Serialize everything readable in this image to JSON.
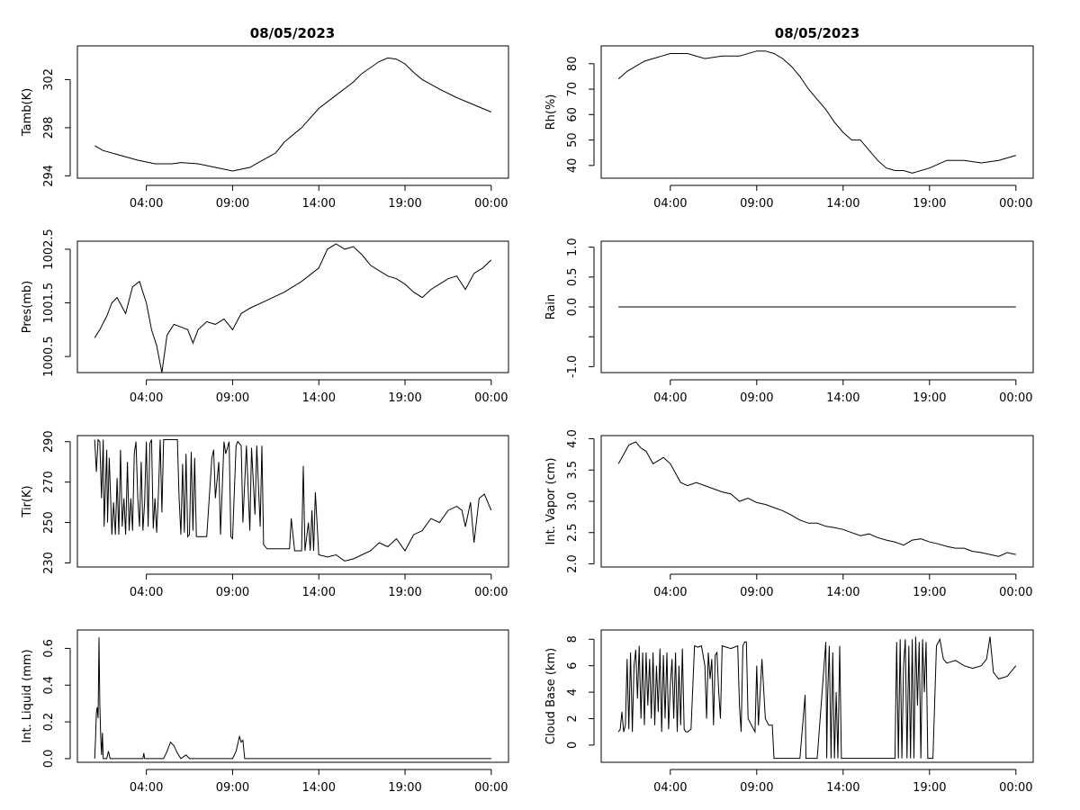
{
  "x_ticks": [
    "04:00",
    "09:00",
    "14:00",
    "19:00",
    "00:00"
  ],
  "chart_data": [
    {
      "type": "line",
      "title": "08/05/2023",
      "ylabel": "Tamb(K)",
      "xlabel": "",
      "x_unit": "hours since 00:00 08/05/2023",
      "ylim": [
        293.8,
        304.8
      ],
      "yticks": [
        294,
        298,
        302
      ],
      "series": [
        {
          "x": [
            1.0,
            1.5,
            2.5,
            3.5,
            4.5,
            5.5,
            6.0,
            7.0,
            8.0,
            9.0,
            10.0,
            10.5,
            11.0,
            11.5,
            12.0,
            13.0,
            14.0,
            15.0,
            16.0,
            16.5,
            17.0,
            17.5,
            18.0,
            18.5,
            19.0,
            19.5,
            20.0,
            21.0,
            22.0,
            23.0,
            24.0
          ],
          "y": [
            296.5,
            296.1,
            295.7,
            295.3,
            295.0,
            295.0,
            295.1,
            295.0,
            294.7,
            294.4,
            294.7,
            295.1,
            295.5,
            295.9,
            296.8,
            298.0,
            299.6,
            300.7,
            301.8,
            302.5,
            303.0,
            303.5,
            303.8,
            303.7,
            303.3,
            302.6,
            302.0,
            301.2,
            300.5,
            299.9,
            299.3
          ]
        }
      ]
    },
    {
      "type": "line",
      "title": "08/05/2023",
      "ylabel": "Rh(%)",
      "xlabel": "",
      "x_unit": "hours since 00:00 08/05/2023",
      "ylim": [
        35,
        87
      ],
      "yticks": [
        40,
        50,
        60,
        70,
        80
      ],
      "series": [
        {
          "x": [
            1.0,
            1.5,
            2.0,
            2.5,
            3.0,
            3.5,
            4.0,
            5.0,
            6.0,
            7.0,
            8.0,
            9.0,
            9.5,
            10.0,
            10.5,
            11.0,
            11.5,
            12.0,
            12.5,
            13.0,
            13.5,
            14.0,
            14.5,
            15.0,
            15.5,
            16.0,
            16.5,
            17.0,
            17.5,
            18.0,
            19.0,
            20.0,
            21.0,
            22.0,
            23.0,
            24.0
          ],
          "y": [
            74,
            77,
            79,
            81,
            82,
            83,
            84,
            84,
            82,
            83,
            83,
            85,
            85,
            84,
            82,
            79,
            75,
            70,
            66,
            62,
            57,
            53,
            50,
            50,
            46,
            42,
            39,
            38,
            38,
            37,
            39,
            42,
            42,
            41,
            42,
            44
          ]
        }
      ]
    },
    {
      "type": "line",
      "title": "",
      "ylabel": "Pres(mb)",
      "xlabel": "",
      "x_unit": "hours since 00:00 08/05/2023",
      "ylim": [
        1000.2,
        1002.65
      ],
      "yticks": [
        1000.5,
        1001.5,
        1002.5
      ],
      "ytick_labels": [
        "1000.5",
        "1001.5",
        "1002.5"
      ],
      "series": [
        {
          "x": [
            1.0,
            1.3,
            1.7,
            2.0,
            2.3,
            2.8,
            3.2,
            3.6,
            4.0,
            4.3,
            4.6,
            4.9,
            5.2,
            5.6,
            6.0,
            6.4,
            6.7,
            7.0,
            7.5,
            8.0,
            8.5,
            9.0,
            9.5,
            10.0,
            11.0,
            12.0,
            13.0,
            14.0,
            14.5,
            15.0,
            15.5,
            16.0,
            16.5,
            17.0,
            17.5,
            18.0,
            18.5,
            19.0,
            19.5,
            20.0,
            20.5,
            21.0,
            21.5,
            22.0,
            22.5,
            23.0,
            23.5,
            24.0
          ],
          "y": [
            1000.85,
            1001.0,
            1001.25,
            1001.5,
            1001.6,
            1001.3,
            1001.8,
            1001.9,
            1001.5,
            1001.0,
            1000.7,
            1000.2,
            1000.9,
            1001.1,
            1001.05,
            1001.0,
            1000.75,
            1001.0,
            1001.15,
            1001.1,
            1001.2,
            1001.0,
            1001.3,
            1001.4,
            1001.55,
            1001.7,
            1001.9,
            1002.15,
            1002.5,
            1002.6,
            1002.5,
            1002.55,
            1002.4,
            1002.2,
            1002.1,
            1002.0,
            1001.95,
            1001.85,
            1001.7,
            1001.6,
            1001.75,
            1001.85,
            1001.95,
            1002.0,
            1001.75,
            1002.05,
            1002.15,
            1002.3
          ]
        }
      ]
    },
    {
      "type": "line",
      "title": "",
      "ylabel": "Rain",
      "xlabel": "",
      "x_unit": "hours since 00:00 08/05/2023",
      "ylim": [
        -1.1,
        1.1
      ],
      "yticks": [
        -1.0,
        -0.5,
        0.0,
        0.5,
        1.0
      ],
      "ytick_labels": [
        "-1.0",
        "",
        "0.0",
        "0.5",
        "1.0"
      ],
      "series": [
        {
          "x": [
            1.0,
            24.0
          ],
          "y": [
            0.0,
            0.0
          ]
        }
      ]
    },
    {
      "type": "line",
      "title": "",
      "ylabel": "Tir(K)",
      "xlabel": "",
      "x_unit": "hours since 00:00 08/05/2023",
      "ylim": [
        228,
        293
      ],
      "yticks": [
        230,
        250,
        270,
        290
      ],
      "series": [
        {
          "x": [
            1.0,
            1.1,
            1.2,
            1.3,
            1.4,
            1.5,
            1.55,
            1.7,
            1.75,
            1.85,
            2.0,
            2.1,
            2.2,
            2.3,
            2.4,
            2.5,
            2.6,
            2.7,
            2.8,
            2.9,
            3.0,
            3.1,
            3.2,
            3.3,
            3.4,
            3.5,
            3.6,
            3.7,
            3.8,
            3.9,
            4.0,
            4.1,
            4.2,
            4.3,
            4.4,
            4.5,
            4.6,
            4.7,
            4.8,
            4.9,
            5.0,
            5.1,
            5.2,
            5.3,
            5.4,
            5.5,
            5.6,
            5.7,
            5.8,
            5.9,
            6.0,
            6.1,
            6.2,
            6.3,
            6.4,
            6.5,
            6.6,
            6.7,
            6.8,
            6.9,
            7.0,
            7.5,
            7.8,
            7.9,
            8.0,
            8.2,
            8.3,
            8.5,
            8.6,
            8.8,
            8.9,
            9.0,
            9.2,
            9.3,
            9.5,
            9.6,
            9.8,
            10.0,
            10.1,
            10.3,
            10.4,
            10.6,
            10.7,
            10.8,
            11.0,
            11.5,
            12.0,
            12.3,
            12.4,
            12.6,
            13.0,
            13.1,
            13.2,
            13.4,
            13.5,
            13.6,
            13.7,
            13.8,
            14.0,
            14.5,
            15.0,
            15.5,
            16.0,
            16.5,
            17.0,
            17.5,
            18.0,
            18.5,
            19.0,
            19.5,
            20.0,
            20.5,
            21.0,
            21.5,
            22.0,
            22.3,
            22.5,
            22.8,
            23.0,
            23.3,
            23.6,
            24.0
          ],
          "y": [
            291,
            275,
            291,
            290,
            262,
            291,
            248,
            286,
            250,
            282,
            244,
            260,
            244,
            272,
            244,
            286,
            248,
            262,
            244,
            280,
            246,
            262,
            246,
            284,
            290,
            262,
            248,
            280,
            246,
            260,
            290,
            248,
            289,
            291,
            247,
            262,
            245,
            265,
            291,
            255,
            291,
            291,
            291,
            291,
            291,
            291,
            291,
            291,
            291,
            262,
            244,
            279,
            245,
            284,
            243,
            244,
            285,
            246,
            282,
            243,
            243,
            243,
            282,
            286,
            262,
            280,
            244,
            290,
            284,
            290,
            243,
            242,
            288,
            290,
            288,
            250,
            288,
            246,
            287,
            254,
            288,
            248,
            288,
            239,
            237,
            237,
            237,
            237,
            252,
            236,
            236,
            278,
            236,
            250,
            236,
            256,
            236,
            265,
            234,
            233,
            234,
            231,
            232,
            234,
            236,
            240,
            238,
            242,
            236,
            244,
            246,
            252,
            250,
            256,
            258,
            256,
            248,
            260,
            240,
            262,
            264,
            256
          ]
        }
      ]
    },
    {
      "type": "line",
      "title": "",
      "ylabel": "Int. Vapor (cm)",
      "xlabel": "",
      "x_unit": "hours since 00:00 08/05/2023",
      "ylim": [
        1.95,
        4.05
      ],
      "yticks": [
        2.0,
        2.5,
        3.0,
        3.5,
        4.0
      ],
      "ytick_labels": [
        "2.0",
        "2.5",
        "3.0",
        "3.5",
        "4.0"
      ],
      "series": [
        {
          "x": [
            1.0,
            1.3,
            1.6,
            2.0,
            2.3,
            2.6,
            3.0,
            3.3,
            3.6,
            4.0,
            4.3,
            4.6,
            5.0,
            5.5,
            6.0,
            6.5,
            7.0,
            7.5,
            8.0,
            8.5,
            9.0,
            9.5,
            10.0,
            10.5,
            11.0,
            11.5,
            12.0,
            12.5,
            13.0,
            13.5,
            14.0,
            14.5,
            15.0,
            15.5,
            16.0,
            16.5,
            17.0,
            17.5,
            18.0,
            18.5,
            19.0,
            19.5,
            20.0,
            20.5,
            21.0,
            21.5,
            22.0,
            22.5,
            23.0,
            23.5,
            24.0
          ],
          "y": [
            3.6,
            3.75,
            3.9,
            3.95,
            3.85,
            3.8,
            3.6,
            3.65,
            3.7,
            3.6,
            3.45,
            3.3,
            3.25,
            3.3,
            3.25,
            3.2,
            3.15,
            3.12,
            3.0,
            3.05,
            2.98,
            2.95,
            2.9,
            2.85,
            2.78,
            2.7,
            2.65,
            2.65,
            2.6,
            2.58,
            2.55,
            2.5,
            2.45,
            2.48,
            2.42,
            2.38,
            2.35,
            2.3,
            2.38,
            2.4,
            2.35,
            2.32,
            2.28,
            2.25,
            2.25,
            2.2,
            2.18,
            2.15,
            2.12,
            2.18,
            2.15
          ]
        }
      ]
    },
    {
      "type": "line",
      "title": "",
      "ylabel": "Int. Liquid (mm)",
      "xlabel": "",
      "x_unit": "hours since 00:00 08/05/2023",
      "ylim": [
        -0.02,
        0.7
      ],
      "yticks": [
        0.0,
        0.2,
        0.4,
        0.6
      ],
      "ytick_labels": [
        "0.0",
        "0.2",
        "0.4",
        "0.6"
      ],
      "series": [
        {
          "x": [
            1.0,
            1.05,
            1.1,
            1.15,
            1.2,
            1.25,
            1.3,
            1.35,
            1.4,
            1.45,
            1.5,
            1.6,
            1.7,
            1.8,
            1.9,
            2.0,
            3.8,
            3.85,
            3.9,
            5.0,
            5.2,
            5.4,
            5.6,
            5.8,
            6.0,
            6.3,
            6.5,
            9.0,
            9.2,
            9.4,
            9.5,
            9.6,
            9.7,
            10.0,
            24.0
          ],
          "y": [
            0.0,
            0.1,
            0.25,
            0.28,
            0.22,
            0.66,
            0.3,
            0.12,
            0.02,
            0.14,
            0.0,
            0.0,
            0.0,
            0.04,
            0.0,
            0.0,
            0.0,
            0.03,
            0.0,
            0.0,
            0.04,
            0.09,
            0.07,
            0.03,
            0.0,
            0.02,
            0.0,
            0.0,
            0.04,
            0.12,
            0.09,
            0.1,
            0.0,
            0.0,
            0.0
          ]
        }
      ]
    },
    {
      "type": "line",
      "title": "",
      "ylabel": "Cloud Base (km)",
      "xlabel": "",
      "x_unit": "hours since 00:00 08/05/2023",
      "ylim": [
        -1.3,
        8.7
      ],
      "yticks": [
        0,
        2,
        4,
        6,
        8
      ],
      "series": [
        {
          "x": [
            1.0,
            1.1,
            1.2,
            1.3,
            1.4,
            1.5,
            1.6,
            1.7,
            1.8,
            1.9,
            2.0,
            2.1,
            2.2,
            2.3,
            2.4,
            2.5,
            2.6,
            2.7,
            2.8,
            2.9,
            3.0,
            3.1,
            3.2,
            3.3,
            3.4,
            3.5,
            3.6,
            3.7,
            3.8,
            3.9,
            4.0,
            4.1,
            4.2,
            4.3,
            4.4,
            4.5,
            4.6,
            4.7,
            4.8,
            4.9,
            5.0,
            5.2,
            5.4,
            5.6,
            5.8,
            6.0,
            6.1,
            6.2,
            6.3,
            6.4,
            6.5,
            6.6,
            6.7,
            6.8,
            6.9,
            7.0,
            7.5,
            7.9,
            8.0,
            8.1,
            8.2,
            8.3,
            8.4,
            8.5,
            8.7,
            8.9,
            9.0,
            9.1,
            9.3,
            9.5,
            9.7,
            9.9,
            10.0,
            10.1,
            10.2,
            10.3,
            10.4,
            10.5,
            10.6,
            10.7,
            10.8,
            11.0,
            11.5,
            11.8,
            11.85,
            12.0,
            12.5,
            13.0,
            13.05,
            13.1,
            13.2,
            13.3,
            13.4,
            13.5,
            13.6,
            13.7,
            13.8,
            13.9,
            14.0,
            14.5,
            15.0,
            15.5,
            16.0,
            16.5,
            17.0,
            17.1,
            17.2,
            17.3,
            17.4,
            17.5,
            17.6,
            17.7,
            17.8,
            17.9,
            18.0,
            18.1,
            18.2,
            18.3,
            18.4,
            18.5,
            18.6,
            18.7,
            18.8,
            18.9,
            19.0,
            19.2,
            19.4,
            19.6,
            19.8,
            20.0,
            20.5,
            21.0,
            21.5,
            22.0,
            22.3,
            22.5,
            22.7,
            23.0,
            23.5,
            24.0
          ],
          "y": [
            1.0,
            1.2,
            2.5,
            1.0,
            1.5,
            6.5,
            1.2,
            7.0,
            1.0,
            6.0,
            7.2,
            3.5,
            7.5,
            2.0,
            7.0,
            1.5,
            7.0,
            3.0,
            6.5,
            2.0,
            7.0,
            1.5,
            6.0,
            2.5,
            7.3,
            1.0,
            6.8,
            2.0,
            7.0,
            1.2,
            4.5,
            6.5,
            2.0,
            7.0,
            1.0,
            6.0,
            1.5,
            7.3,
            1.2,
            1.0,
            1.0,
            1.2,
            7.5,
            7.4,
            7.5,
            6.0,
            2.0,
            7.0,
            5.0,
            6.5,
            1.5,
            6.8,
            7.0,
            4.0,
            2.0,
            7.5,
            7.3,
            7.5,
            3.0,
            1.0,
            7.5,
            7.8,
            7.8,
            2.0,
            1.5,
            1.0,
            6.0,
            1.5,
            6.5,
            2.0,
            1.5,
            1.5,
            -1.0,
            -1.0,
            -1.0,
            -1.0,
            -1.0,
            -1.0,
            -1.0,
            -1.0,
            -1.0,
            -1.0,
            -1.0,
            3.8,
            -1.0,
            -1.0,
            -1.0,
            7.8,
            -1.0,
            3.5,
            7.5,
            -1.0,
            7.0,
            -1.0,
            4.0,
            -1.0,
            7.5,
            -1.0,
            -1.0,
            -1.0,
            -1.0,
            -1.0,
            -1.0,
            -1.0,
            -1.0,
            7.8,
            -1.0,
            8.0,
            -1.0,
            6.0,
            8.0,
            -1.0,
            7.5,
            -1.0,
            8.0,
            -1.0,
            8.2,
            3.0,
            7.8,
            -1.0,
            8.0,
            4.0,
            7.8,
            -1.0,
            -1.0,
            -1.0,
            7.5,
            8.0,
            6.5,
            6.2,
            6.4,
            6.0,
            5.8,
            6.0,
            6.5,
            8.2,
            5.5,
            5.0,
            5.2,
            6.0
          ]
        }
      ]
    }
  ]
}
